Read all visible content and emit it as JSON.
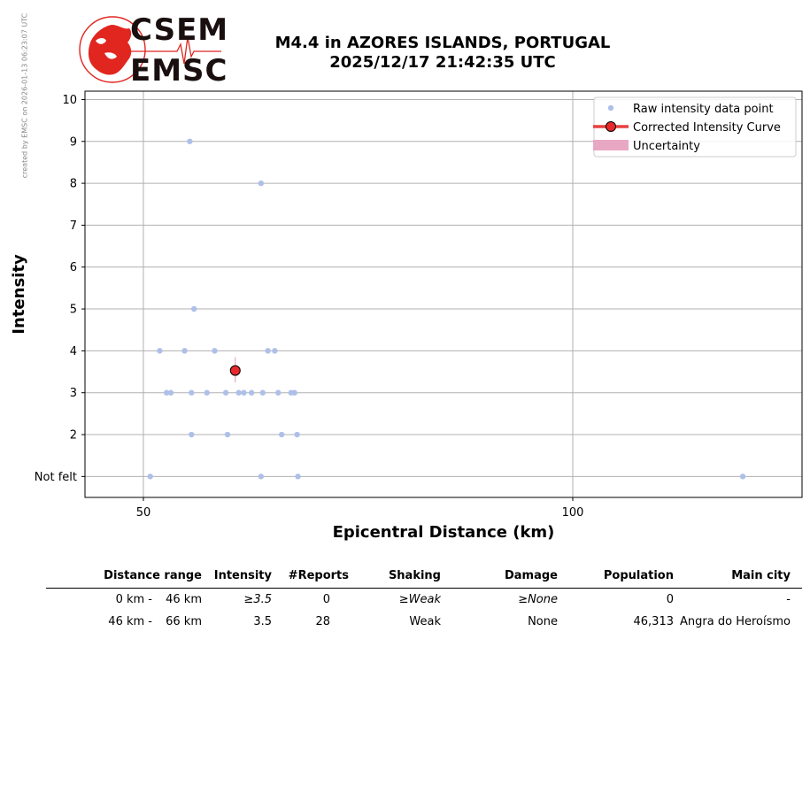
{
  "watermark": "created by EMSC on 2026-01-13 06:23:07 UTC",
  "logo": {
    "top": "CSEM",
    "bottom": "EMSC"
  },
  "title": {
    "line1": "M4.4 in AZORES ISLANDS, PORTUGAL",
    "line2": "2025/12/17 21:42:35 UTC"
  },
  "colors": {
    "raw": "#aec0e8",
    "curve": "#e8282a",
    "curve_line": "#e84040",
    "uncertainty": "#e8a8c4",
    "grid": "#b0b0b0",
    "logo_red": "#e0261f"
  },
  "chart_data": {
    "type": "scatter",
    "xlabel": "Epicentral Distance (km)",
    "ylabel": "Intensity",
    "xlim": [
      43.2,
      126.7
    ],
    "ylim": [
      0.5,
      10.2
    ],
    "xticks": [
      50,
      100
    ],
    "yticks": [
      1,
      2,
      3,
      4,
      5,
      6,
      7,
      8,
      9,
      10
    ],
    "ytick_labels": [
      "Not felt",
      "2",
      "3",
      "4",
      "5",
      "6",
      "7",
      "8",
      "9",
      "10"
    ],
    "grid": true,
    "legend": {
      "placement": "top-right",
      "entries": [
        "Raw intensity data point",
        "Corrected Intensity Curve",
        "Uncertainty"
      ]
    },
    "raw_points": [
      [
        55.4,
        9
      ],
      [
        63.7,
        8
      ],
      [
        55.9,
        5
      ],
      [
        51.9,
        4
      ],
      [
        54.8,
        4
      ],
      [
        58.3,
        4
      ],
      [
        64.5,
        4
      ],
      [
        65.3,
        4
      ],
      [
        52.7,
        3
      ],
      [
        53.2,
        3
      ],
      [
        55.6,
        3
      ],
      [
        57.4,
        3
      ],
      [
        59.6,
        3
      ],
      [
        61.1,
        3
      ],
      [
        61.7,
        3
      ],
      [
        63.9,
        3
      ],
      [
        62.6,
        3
      ],
      [
        65.7,
        3
      ],
      [
        67.2,
        3
      ],
      [
        67.6,
        3
      ],
      [
        55.6,
        2
      ],
      [
        59.8,
        2
      ],
      [
        66.1,
        2
      ],
      [
        67.9,
        2
      ],
      [
        50.8,
        1
      ],
      [
        63.7,
        1
      ],
      [
        68.0,
        1
      ],
      [
        119.8,
        1
      ]
    ],
    "corrected_points": [
      [
        60.7,
        3.53
      ]
    ],
    "uncertainty": [
      [
        60.7,
        3.25,
        3.85
      ]
    ]
  },
  "table": {
    "headers": [
      "Distance range",
      "Intensity",
      "#Reports",
      "Shaking",
      "Damage",
      "Population",
      "Main city"
    ],
    "rows": [
      {
        "dist_from": "0 km -",
        "dist_to": "46 km",
        "intensity": "≥3.5",
        "reports": "0",
        "shaking": "≥Weak",
        "damage": "≥None",
        "population": "0",
        "city": "-",
        "italic": true
      },
      {
        "dist_from": "46 km -",
        "dist_to": "66 km",
        "intensity": "3.5",
        "reports": "28",
        "shaking": "Weak",
        "damage": "None",
        "population": "46,313",
        "city": "Angra do Heroísmo",
        "italic": false
      }
    ]
  }
}
